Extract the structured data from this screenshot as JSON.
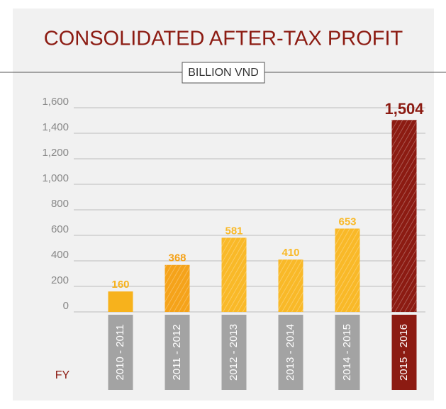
{
  "chart_data": {
    "type": "bar",
    "title": "CONSOLIDATED AFTER-TAX PROFIT",
    "subtitle": "BILLION VND",
    "x_label": "FY",
    "categories": [
      "2010 - 2011",
      "2011 - 2012",
      "2012 - 2013",
      "2013 - 2014",
      "2014 - 2015",
      "2015 - 2016"
    ],
    "values": [
      160,
      368,
      581,
      410,
      653,
      1504
    ],
    "value_labels": [
      "160",
      "368",
      "581",
      "410",
      "653",
      "1,504"
    ],
    "colors": [
      "#f7b21c",
      "#f5a31a",
      "#f9b928",
      "#f9b928",
      "#f9b928",
      "#8c1b12"
    ],
    "hatched": [
      false,
      true,
      true,
      true,
      true,
      true
    ],
    "category_box_colors": [
      "#a3a3a3",
      "#a3a3a3",
      "#a3a3a3",
      "#a3a3a3",
      "#a3a3a3",
      "#8c1b12"
    ],
    "ylim": [
      0,
      1600
    ],
    "yticks": [
      0,
      200,
      400,
      600,
      800,
      {
        "value": 1000,
        "label": "1,000"
      },
      {
        "value": 1200,
        "label": "1,200"
      },
      {
        "value": 1400,
        "label": "1,400"
      },
      {
        "value": 1600,
        "label": "1,600"
      }
    ],
    "grid": true
  }
}
